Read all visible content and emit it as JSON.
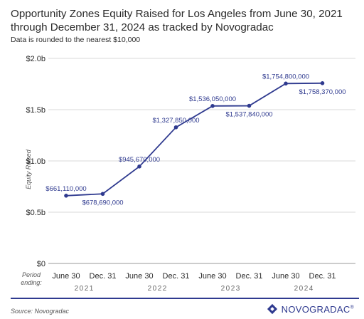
{
  "chart_data": {
    "type": "line",
    "title": "Opportunity Zones Equity Raised for Los Angeles from June 30, 2021 through December 31, 2024 as tracked by Novogradac",
    "subtitle": "Data is rounded to the nearest $10,000",
    "ylabel": "Equity Raised",
    "xlabel_prefix": "Period ending:",
    "ylim": [
      0,
      2000000000
    ],
    "yticks": [
      {
        "value": 0,
        "label": "$0"
      },
      {
        "value": 500000000,
        "label": "$0.5b"
      },
      {
        "value": 1000000000,
        "label": "$1.0b"
      },
      {
        "value": 1500000000,
        "label": "$1.5b"
      },
      {
        "value": 2000000000,
        "label": "$2.0b"
      }
    ],
    "grid": true,
    "categories": [
      "June 30",
      "Dec. 31",
      "June 30",
      "Dec. 31",
      "June 30",
      "Dec. 31",
      "June 30",
      "Dec. 31"
    ],
    "years": [
      "2021",
      "2022",
      "2023",
      "2024"
    ],
    "series": [
      {
        "values": [
          661110000,
          678690000,
          945670000,
          1327850000,
          1536050000,
          1537840000,
          1754800000,
          1758370000
        ],
        "labels": [
          "$661,110,000",
          "$678,690,000",
          "$945,670,000",
          "$1,327,850,000",
          "$1,536,050,000",
          "$1,537,840,000",
          "$1,754,800,000",
          "$1,758,370,000"
        ],
        "label_side": [
          "above",
          "below",
          "above",
          "above",
          "above",
          "below",
          "above",
          "below"
        ]
      }
    ],
    "line_color": "#2f3a8f",
    "grid_color": "#d9d9d9"
  },
  "source": "Source: Novogradac",
  "logo": "NOVOGRADAC",
  "logo_mark": "®"
}
